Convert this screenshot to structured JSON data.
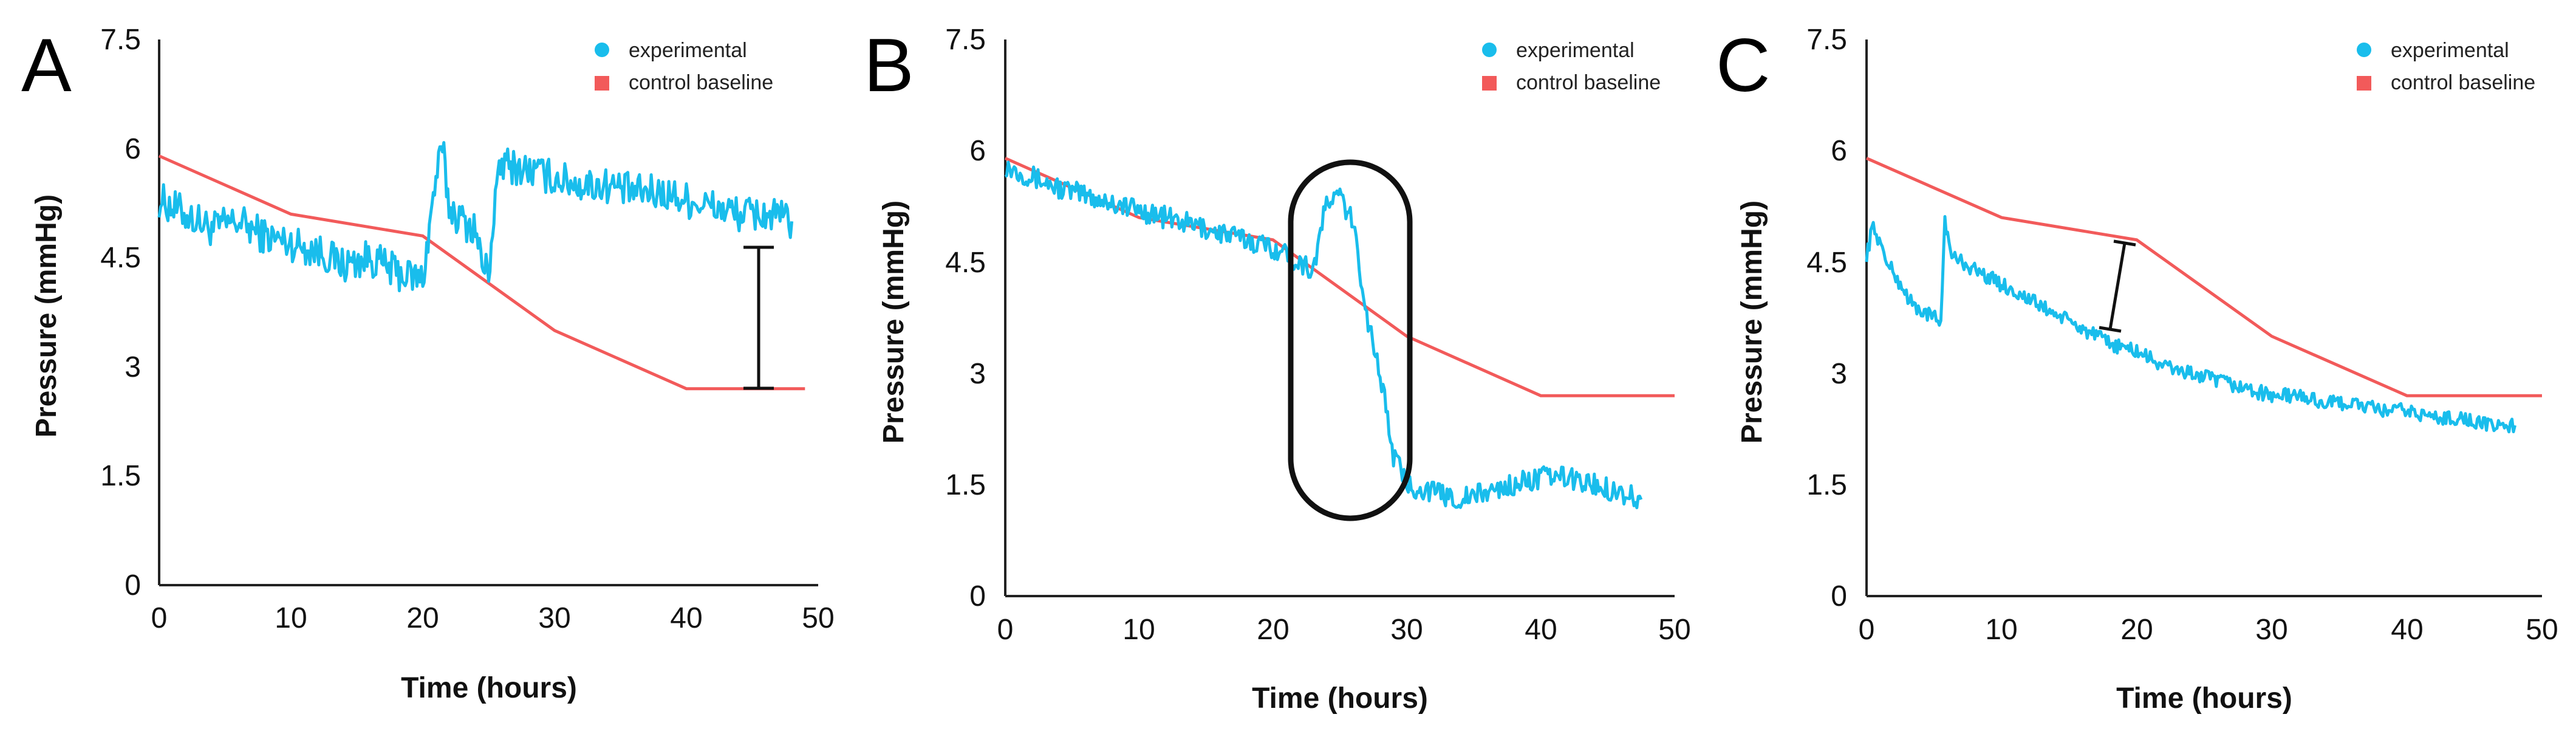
{
  "figure": {
    "description_panels": [
      "A",
      "B",
      "C"
    ]
  },
  "colors": {
    "experimental": "#19bdec",
    "control": "#f25a5a",
    "axis": "#222222",
    "annotation": "#111111"
  },
  "chart_data": [
    {
      "panel": "A",
      "type": "line",
      "xlabel": "Time (hours)",
      "ylabel": "Pressure (mmHg)",
      "xlim": [
        0,
        50
      ],
      "ylim": [
        0,
        7.5
      ],
      "xticks": [
        0,
        10,
        20,
        30,
        40,
        50
      ],
      "yticks": [
        0,
        1.5,
        3,
        4.5,
        6,
        7.5
      ],
      "xtick_labels": [
        "0",
        "10",
        "20",
        "30",
        "40",
        "50"
      ],
      "ytick_labels": [
        "0",
        "1.5",
        "3",
        "4.5",
        "6",
        "7.5"
      ],
      "legend": {
        "placement": "top-right",
        "entries": [
          "experimental",
          "control baseline"
        ]
      },
      "series": [
        {
          "name": "experimental",
          "style": "noisy-line",
          "x": [
            0,
            2,
            4,
            6,
            8,
            10,
            12,
            14,
            16,
            18,
            20,
            20.5,
            21,
            21.5,
            22,
            23,
            24,
            24.5,
            25,
            25.5,
            26,
            28,
            30,
            32,
            34,
            36,
            38,
            40,
            42,
            44,
            46,
            48
          ],
          "values": [
            5.3,
            5.1,
            4.9,
            5.0,
            4.8,
            4.7,
            4.6,
            4.4,
            4.5,
            4.3,
            4.2,
            4.9,
            5.6,
            6.0,
            5.2,
            5.0,
            4.9,
            4.4,
            4.3,
            5.3,
            5.8,
            5.7,
            5.6,
            5.5,
            5.5,
            5.4,
            5.4,
            5.3,
            5.2,
            5.1,
            5.1,
            5.0
          ],
          "noise": 0.25
        },
        {
          "name": "control baseline",
          "style": "line",
          "x": [
            0,
            10,
            20,
            30,
            40,
            49
          ],
          "values": [
            5.9,
            5.1,
            4.8,
            3.5,
            2.7,
            2.7
          ]
        }
      ],
      "annotations": [
        {
          "type": "error-bar",
          "x": 44.5,
          "y_low": 2.75,
          "y_high": 4.7
        }
      ]
    },
    {
      "panel": "B",
      "type": "line",
      "xlabel": "Time (hours)",
      "ylabel": "Pressure (mmHg)",
      "xlim": [
        0,
        50
      ],
      "ylim": [
        0,
        7.5
      ],
      "xticks": [
        0,
        10,
        20,
        30,
        40,
        50
      ],
      "yticks": [
        0,
        1.5,
        3,
        4.5,
        6,
        7.5
      ],
      "xtick_labels": [
        "0",
        "10",
        "20",
        "30",
        "40",
        "50"
      ],
      "ytick_labels": [
        "0",
        "1.5",
        "3",
        "4.5",
        "6",
        "7.5"
      ],
      "legend": {
        "placement": "top-right",
        "entries": [
          "experimental",
          "control baseline"
        ]
      },
      "series": [
        {
          "name": "experimental",
          "style": "noisy-line",
          "x": [
            0,
            4,
            8,
            12,
            16,
            20,
            23,
            24,
            25,
            26,
            27,
            28,
            29,
            30,
            32,
            34,
            36,
            38,
            40,
            42,
            44,
            46,
            47.5
          ],
          "values": [
            5.8,
            5.5,
            5.3,
            5.1,
            4.9,
            4.7,
            4.4,
            5.3,
            5.4,
            5.0,
            3.8,
            3.0,
            1.9,
            1.5,
            1.4,
            1.3,
            1.4,
            1.5,
            1.6,
            1.6,
            1.5,
            1.4,
            1.3
          ],
          "noise": 0.15
        },
        {
          "name": "control baseline",
          "style": "line",
          "x": [
            0,
            10,
            20,
            30,
            40,
            50
          ],
          "values": [
            5.9,
            5.1,
            4.8,
            3.5,
            2.7,
            2.7
          ]
        }
      ],
      "annotations": [
        {
          "type": "ellipse-highlight",
          "x_start": 21,
          "x_end": 30,
          "y_low": 1.1,
          "y_high": 5.9
        }
      ]
    },
    {
      "panel": "C",
      "type": "line",
      "xlabel": "Time (hours)",
      "ylabel": "Pressure (mmHg)",
      "xlim": [
        0,
        50
      ],
      "ylim": [
        0,
        7.5
      ],
      "xticks": [
        0,
        10,
        20,
        30,
        40,
        50
      ],
      "yticks": [
        0,
        1.5,
        3,
        4.5,
        6,
        7.5
      ],
      "xtick_labels": [
        "0",
        "10",
        "20",
        "30",
        "40",
        "50"
      ],
      "ytick_labels": [
        "0",
        "1.5",
        "3",
        "4.5",
        "6",
        "7.5"
      ],
      "legend": {
        "placement": "top-right",
        "entries": [
          "experimental",
          "control baseline"
        ]
      },
      "series": [
        {
          "name": "experimental",
          "style": "noisy-line",
          "x": [
            0,
            0.5,
            1.5,
            2.5,
            3.5,
            4.5,
            5.5,
            5.8,
            6.2,
            8,
            10,
            12,
            14,
            16,
            18,
            20,
            22,
            24,
            26,
            28,
            30,
            32,
            34,
            36,
            38,
            40,
            42,
            44,
            46,
            48
          ],
          "values": [
            4.6,
            5.0,
            4.5,
            4.2,
            3.9,
            3.8,
            3.7,
            5.1,
            4.6,
            4.4,
            4.2,
            4.0,
            3.8,
            3.6,
            3.4,
            3.3,
            3.1,
            3.0,
            2.9,
            2.8,
            2.7,
            2.7,
            2.6,
            2.6,
            2.5,
            2.5,
            2.4,
            2.4,
            2.3,
            2.3
          ],
          "noise": 0.1
        },
        {
          "name": "control baseline",
          "style": "line",
          "x": [
            0,
            10,
            20,
            30,
            40,
            50
          ],
          "values": [
            5.9,
            5.1,
            4.8,
            3.5,
            2.7,
            2.7
          ]
        }
      ],
      "annotations": [
        {
          "type": "error-bar",
          "x": 18,
          "y_low": 3.6,
          "y_high": 4.8
        }
      ]
    }
  ]
}
